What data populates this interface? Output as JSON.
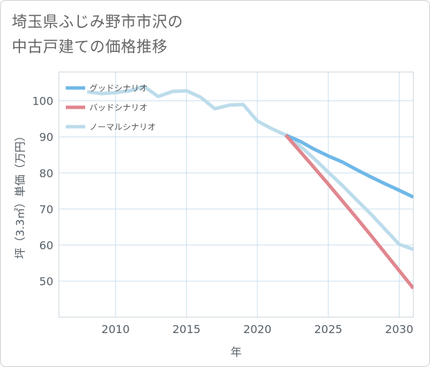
{
  "page_title_lines": [
    "埼玉県ふじみ野市市沢の",
    "中古戸建ての価格推移"
  ],
  "chart_data": {
    "type": "line",
    "title": "埼玉県ふじみ野市市沢の中古戸建ての価格推移",
    "xlabel": "年",
    "ylabel": "坪（3.3㎡）単価（万円）",
    "xlim": [
      2006,
      2031
    ],
    "ylim": [
      40,
      108
    ],
    "xticks": [
      2010,
      2015,
      2020,
      2025,
      2030
    ],
    "yticks": [
      50,
      60,
      70,
      80,
      90,
      100
    ],
    "legend_position": "top-left",
    "series": [
      {
        "name": "グッドシナリオ",
        "color": "#6fb8e8",
        "points": [
          [
            2022,
            90.5
          ],
          [
            2023,
            88.8
          ],
          [
            2024,
            86.6
          ],
          [
            2025,
            84.7
          ],
          [
            2026,
            83.0
          ],
          [
            2027,
            80.9
          ],
          [
            2028,
            78.9
          ],
          [
            2029,
            77.0
          ],
          [
            2030,
            75.2
          ],
          [
            2031,
            73.3
          ]
        ]
      },
      {
        "name": "バッドシナリオ",
        "color": "#e0868f",
        "points": [
          [
            2022,
            90.5
          ],
          [
            2023,
            86.0
          ],
          [
            2024,
            81.5
          ],
          [
            2025,
            76.9
          ],
          [
            2026,
            72.2
          ],
          [
            2027,
            67.5
          ],
          [
            2028,
            62.7
          ],
          [
            2029,
            57.8
          ],
          [
            2030,
            52.9
          ],
          [
            2031,
            48.0
          ]
        ]
      },
      {
        "name": "ノーマルシナリオ",
        "color": "#bcdceb",
        "points": [
          [
            2008,
            102.5
          ],
          [
            2009,
            102.0
          ],
          [
            2010,
            102.3
          ],
          [
            2011,
            102.8
          ],
          [
            2012,
            104.0
          ],
          [
            2013,
            101.2
          ],
          [
            2014,
            102.6
          ],
          [
            2015,
            102.8
          ],
          [
            2016,
            101.0
          ],
          [
            2017,
            97.8
          ],
          [
            2018,
            98.8
          ],
          [
            2019,
            99.0
          ],
          [
            2020,
            94.4
          ],
          [
            2021,
            92.3
          ],
          [
            2022,
            90.5
          ],
          [
            2023,
            87.5
          ],
          [
            2024,
            84.0
          ],
          [
            2025,
            80.2
          ],
          [
            2026,
            76.5
          ],
          [
            2027,
            72.5
          ],
          [
            2028,
            68.6
          ],
          [
            2029,
            64.4
          ],
          [
            2030,
            60.2
          ],
          [
            2031,
            58.8
          ]
        ]
      }
    ]
  }
}
